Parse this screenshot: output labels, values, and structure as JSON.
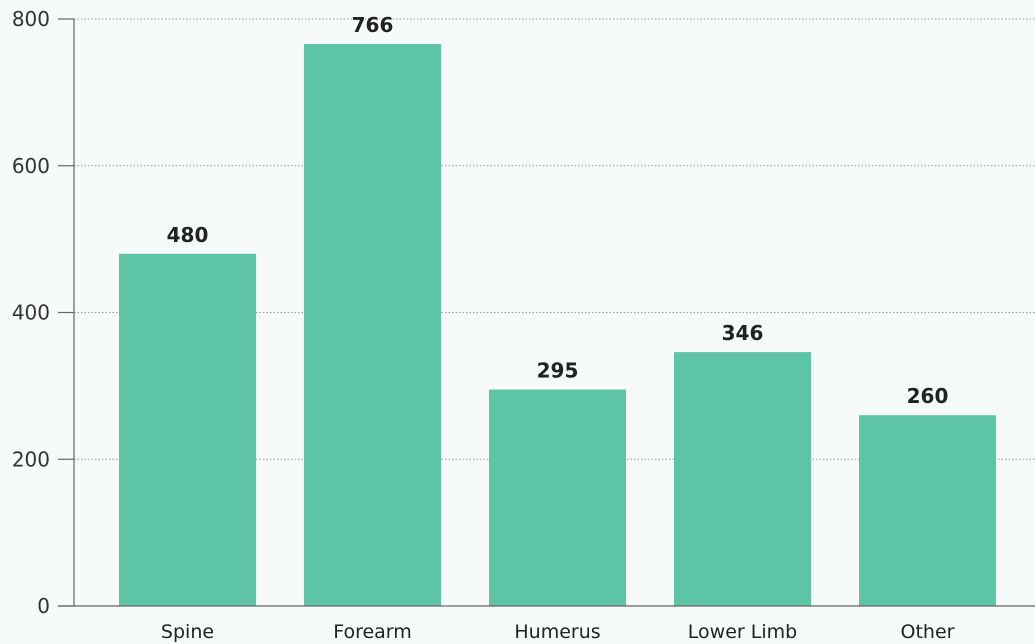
{
  "chart_data": {
    "type": "bar",
    "categories": [
      "Spine",
      "Forearm",
      "Humerus",
      "Lower Limb",
      "Other"
    ],
    "values": [
      480,
      766,
      295,
      346,
      260
    ],
    "data_labels": [
      "480",
      "766",
      "295",
      "346",
      "260"
    ],
    "title": "",
    "xlabel": "",
    "ylabel": "",
    "ylim": [
      0,
      800
    ],
    "yticks": [
      0,
      200,
      400,
      600,
      800
    ],
    "ytick_labels": [
      "0",
      "200",
      "400",
      "600",
      "800"
    ],
    "grid": "horizontal-dotted",
    "legend": "none",
    "bar_color": "#5ec4a6",
    "background_color": "#f6faf8"
  }
}
